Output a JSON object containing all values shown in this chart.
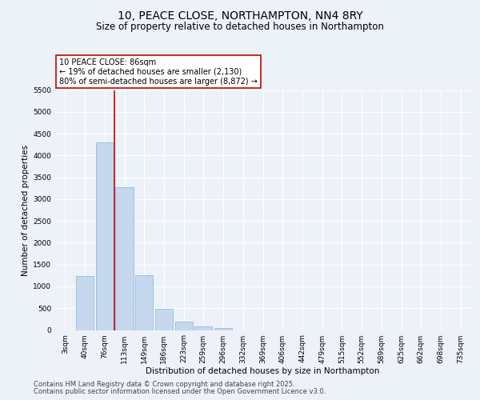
{
  "title": "10, PEACE CLOSE, NORTHAMPTON, NN4 8RY",
  "subtitle": "Size of property relative to detached houses in Northampton",
  "xlabel": "Distribution of detached houses by size in Northampton",
  "ylabel": "Number of detached properties",
  "categories": [
    "3sqm",
    "40sqm",
    "76sqm",
    "113sqm",
    "149sqm",
    "186sqm",
    "223sqm",
    "259sqm",
    "296sqm",
    "332sqm",
    "369sqm",
    "406sqm",
    "442sqm",
    "479sqm",
    "515sqm",
    "552sqm",
    "589sqm",
    "625sqm",
    "662sqm",
    "698sqm",
    "735sqm"
  ],
  "values": [
    0,
    1230,
    4300,
    3270,
    1250,
    490,
    185,
    90,
    55,
    0,
    0,
    0,
    0,
    0,
    0,
    0,
    0,
    0,
    0,
    0,
    0
  ],
  "bar_color": "#c5d8ee",
  "bar_edge_color": "#8ab4d4",
  "vline_x": 2.5,
  "vline_color": "#cc0000",
  "annotation_text": "10 PEACE CLOSE: 86sqm\n← 19% of detached houses are smaller (2,130)\n80% of semi-detached houses are larger (8,872) →",
  "annotation_box_facecolor": "#ffffff",
  "annotation_box_edgecolor": "#cc0000",
  "ylim_max": 5500,
  "yticks": [
    0,
    500,
    1000,
    1500,
    2000,
    2500,
    3000,
    3500,
    4000,
    4500,
    5000,
    5500
  ],
  "footnote1": "Contains HM Land Registry data © Crown copyright and database right 2025.",
  "footnote2": "Contains public sector information licensed under the Open Government Licence v3.0.",
  "bg_color": "#edf2f9",
  "title_fontsize": 10,
  "subtitle_fontsize": 8.5,
  "xlabel_fontsize": 7.5,
  "ylabel_fontsize": 7.5,
  "tick_fontsize": 6.5,
  "ann_fontsize": 7,
  "footnote_fontsize": 6
}
